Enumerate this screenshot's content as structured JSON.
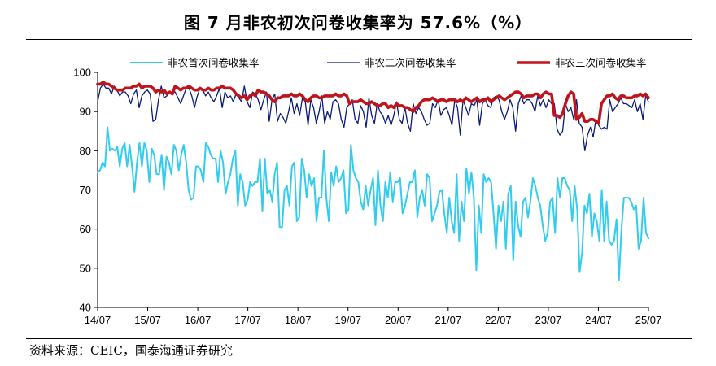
{
  "figure_title": "图   7 月非农初次问卷收集率为 57.6%（%）",
  "source_note": "资料来源：CEIC，国泰海通证券研究",
  "chart_data": {
    "type": "line",
    "x_tick_labels": [
      "14/07",
      "15/07",
      "16/07",
      "17/07",
      "18/07",
      "19/07",
      "20/07",
      "21/07",
      "22/07",
      "23/07",
      "24/07",
      "25/07"
    ],
    "y_tick_labels": [
      "40",
      "50",
      "60",
      "70",
      "80",
      "90",
      "100"
    ],
    "ylim": [
      40,
      100
    ],
    "x_start": "2014-07",
    "x_end": "2025-07",
    "grid": false,
    "legend_position": "top",
    "series": [
      {
        "name": "非农首次问卷收集率",
        "color": "#33ccee",
        "width": 2,
        "values": [
          74.5,
          75,
          77,
          76,
          86,
          80,
          80.5,
          80,
          81,
          76,
          80.5,
          82,
          76,
          81.5,
          76,
          69.5,
          77,
          82,
          76,
          82,
          80,
          72,
          80.5,
          79,
          74,
          74,
          79,
          70,
          78.5,
          77,
          74,
          81.5,
          80,
          75,
          79,
          81.5,
          77,
          70,
          67.5,
          68,
          76,
          76,
          75,
          72,
          82,
          81,
          79,
          78,
          78,
          72,
          80,
          77,
          69,
          72,
          74,
          78,
          80,
          66,
          74,
          72,
          66,
          67.5,
          72,
          71,
          72,
          72,
          78,
          64.5,
          78,
          69,
          70,
          67,
          74,
          77,
          60.5,
          60.5,
          70,
          71,
          66,
          76,
          77,
          62,
          63,
          78,
          75,
          68,
          74,
          71,
          73,
          62,
          68,
          68,
          80,
          68,
          62,
          74.5,
          71,
          76,
          72,
          73,
          75,
          64,
          65,
          81.5,
          75,
          73,
          72,
          67,
          65,
          71,
          66,
          70,
          73,
          61,
          75,
          66,
          62,
          72,
          68,
          74.5,
          67,
          72,
          72,
          73,
          64,
          66,
          69,
          72,
          72,
          75,
          63,
          68,
          70,
          66,
          74,
          73,
          62,
          64,
          66,
          69.5,
          70,
          64,
          59,
          68,
          62,
          59,
          74,
          57,
          67,
          62,
          75.5,
          69,
          74.5,
          68,
          49.5,
          66,
          59,
          74,
          72,
          73,
          72,
          64,
          55,
          66,
          62,
          67,
          55,
          69,
          71,
          52,
          67,
          61,
          58,
          67,
          68,
          63,
          67,
          73,
          71,
          68,
          66,
          61,
          57,
          59,
          67,
          68,
          59,
          73,
          68,
          73,
          73,
          71,
          70,
          62,
          71,
          65,
          49,
          54,
          66,
          64,
          69,
          58,
          64,
          62,
          57,
          70,
          57,
          67,
          57,
          56,
          57,
          62.5,
          47,
          60,
          68,
          68,
          68,
          67,
          65,
          66,
          55,
          57,
          68,
          59,
          57.6
        ]
      },
      {
        "name": "非农二次问卷收集率",
        "color": "#0a1a7a",
        "width": 1.3,
        "values": [
          92.5,
          96,
          97,
          96,
          96,
          94.5,
          96.5,
          95.5,
          94,
          95,
          95,
          94,
          92,
          94.5,
          95.5,
          91,
          94,
          95,
          95.5,
          94.5,
          87.5,
          88,
          93,
          96.5,
          93.5,
          94,
          95,
          95,
          95,
          93.5,
          92,
          94,
          96,
          96,
          94,
          91,
          94,
          96,
          95.5,
          94,
          95,
          93.5,
          92.5,
          94,
          96,
          91,
          95,
          93.5,
          94,
          92.5,
          94.5,
          93.5,
          92.5,
          96.5,
          92.5,
          91,
          95,
          94.5,
          93,
          90.5,
          93,
          95,
          87.5,
          93,
          94.5,
          87.5,
          89.5,
          88.5,
          87,
          90,
          93.5,
          89.5,
          92,
          89,
          93.5,
          92.5,
          86.5,
          93,
          91,
          87,
          90,
          94,
          87,
          90,
          88,
          92.5,
          93,
          92,
          88,
          86,
          91,
          92,
          93,
          88,
          87,
          91.5,
          90,
          86,
          93.5,
          89,
          87,
          92,
          90,
          89,
          87,
          89,
          86.5,
          89,
          92.5,
          88,
          87,
          91,
          87,
          85,
          92,
          89.5,
          91,
          90,
          88,
          86.5,
          87,
          92,
          91,
          93,
          89,
          90.5,
          91,
          89,
          86.5,
          93,
          91,
          84,
          93,
          91,
          89,
          92,
          91.5,
          93,
          86.5,
          92,
          93,
          91.5,
          91,
          93.5,
          94,
          93,
          90,
          88,
          90,
          93,
          91,
          85,
          92,
          94,
          92,
          93,
          93,
          92,
          90,
          94,
          91.5,
          93,
          91,
          93,
          92,
          92,
          85.5,
          84,
          85,
          92,
          90,
          91,
          88,
          93,
          87,
          86,
          80,
          84,
          86,
          83.5,
          88,
          86.5,
          85.5,
          86,
          85.5,
          93,
          90,
          91,
          92,
          93.5,
          92,
          92,
          91.5,
          91,
          93,
          90,
          92,
          88,
          94,
          92.5
        ]
      },
      {
        "name": "非农三次问卷收集率",
        "color": "#c0141c",
        "width": 3.6,
        "values": [
          97,
          97,
          97.5,
          97,
          97,
          96.5,
          96,
          95.5,
          95.5,
          95.5,
          96,
          96,
          96,
          96.5,
          96.5,
          97,
          96,
          96.5,
          96.5,
          96.5,
          96,
          95,
          95.5,
          95,
          95.5,
          94.5,
          95,
          94.5,
          96.5,
          96,
          95.5,
          96,
          96,
          96.5,
          96,
          95.5,
          95.5,
          96,
          95.5,
          95.5,
          96,
          95.5,
          95.5,
          96,
          96,
          96.5,
          96,
          96,
          96,
          95.5,
          94.5,
          94,
          93.5,
          94,
          93,
          94,
          94.5,
          94,
          95.5,
          95,
          95,
          94.5,
          94,
          93,
          92.5,
          93.5,
          93.5,
          94,
          94,
          94,
          94.5,
          94,
          94,
          94.5,
          94,
          93,
          92.5,
          93.5,
          94,
          94,
          93.5,
          93.5,
          94,
          94,
          94,
          94,
          94.5,
          94,
          94,
          94.5,
          94,
          92,
          92.5,
          92.5,
          92.5,
          93,
          92.5,
          92,
          92,
          92.5,
          92,
          91.5,
          91.5,
          92,
          92,
          91,
          91.5,
          91,
          92,
          91.5,
          91.5,
          91,
          91,
          90.5,
          90,
          91,
          91.5,
          92.5,
          93,
          93,
          93,
          93.5,
          93,
          92.5,
          93,
          93,
          92.5,
          93,
          93,
          93,
          92.5,
          93,
          92.5,
          93.5,
          93,
          92.5,
          93,
          93.5,
          92.5,
          93,
          93,
          93.5,
          92.5,
          93,
          93.5,
          94,
          93.5,
          93,
          93.5,
          94,
          94.5,
          95,
          95,
          94.5,
          93.5,
          94,
          94,
          94,
          94.5,
          94.5,
          93.5,
          94.5,
          95,
          94.5,
          94.5,
          89,
          89,
          88.5,
          89.5,
          92,
          94,
          95,
          94.5,
          88,
          88.5,
          89.5,
          87.5,
          87.5,
          88,
          88,
          87.5,
          87,
          92,
          93,
          94,
          94,
          94.5,
          93.5,
          93,
          94,
          94,
          93.5,
          93.5,
          93.5,
          94,
          94,
          94.5,
          94,
          94.5,
          93.5
        ]
      }
    ]
  }
}
